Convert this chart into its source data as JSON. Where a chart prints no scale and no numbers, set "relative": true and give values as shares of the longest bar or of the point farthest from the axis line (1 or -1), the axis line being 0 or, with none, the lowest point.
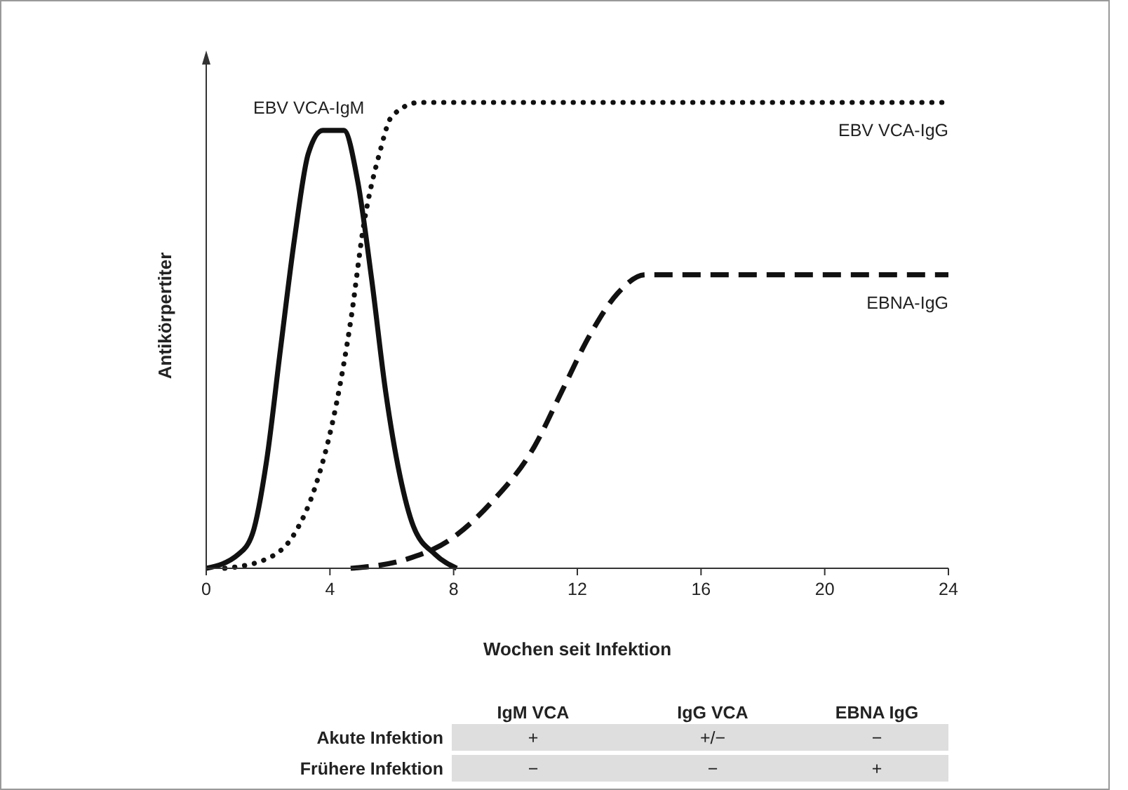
{
  "chart_data": [
    {
      "type": "line",
      "relative": true,
      "xlabel": "Wochen seit Infektion",
      "ylabel": "Antikörpertiter",
      "xlim": [
        0,
        24
      ],
      "xticks": [
        0,
        4,
        8,
        12,
        16,
        20,
        24
      ],
      "grid": false,
      "series": [
        {
          "name": "EBV VCA-IgM",
          "color": "#111111",
          "line_style": "solid",
          "x": [
            0,
            1.04,
            1.5,
            1.95,
            2.4,
            2.86,
            3.3,
            3.77,
            4.45,
            4.9,
            5.35,
            5.8,
            6.26,
            6.7,
            7.4,
            8.1
          ],
          "values": [
            0,
            0.03,
            0.075,
            0.23,
            0.47,
            0.71,
            0.89,
            0.94,
            0.94,
            0.83,
            0.62,
            0.38,
            0.2,
            0.09,
            0.03,
            0
          ]
        },
        {
          "name": "EBV VCA-IgG",
          "color": "#111111",
          "line_style": "dotted",
          "x": [
            0.6,
            1.95,
            2.86,
            3.5,
            4.2,
            4.67,
            5.1,
            5.6,
            6.0,
            6.9,
            24
          ],
          "values": [
            0,
            0.02,
            0.075,
            0.17,
            0.35,
            0.53,
            0.74,
            0.89,
            0.97,
            1,
            1
          ]
        },
        {
          "name": "EBNA-IgG",
          "color": "#111111",
          "line_style": "dashed",
          "x": [
            4.67,
            6.5,
            7.85,
            9.2,
            10.6,
            11.5,
            12.4,
            13.3,
            14.2,
            24
          ],
          "values": [
            0,
            0.02,
            0.06,
            0.14,
            0.26,
            0.38,
            0.5,
            0.59,
            0.63,
            0.63
          ]
        }
      ]
    },
    {
      "type": "other",
      "categories": [
        "IgM VCA",
        "IgG VCA",
        "EBNA IgG"
      ],
      "y_categories": [
        "Akute Infektion",
        "Frühere Infektion"
      ],
      "cell_labels": [
        [
          "+",
          "+/−",
          "−"
        ],
        [
          "−",
          "−",
          "+"
        ]
      ]
    }
  ]
}
